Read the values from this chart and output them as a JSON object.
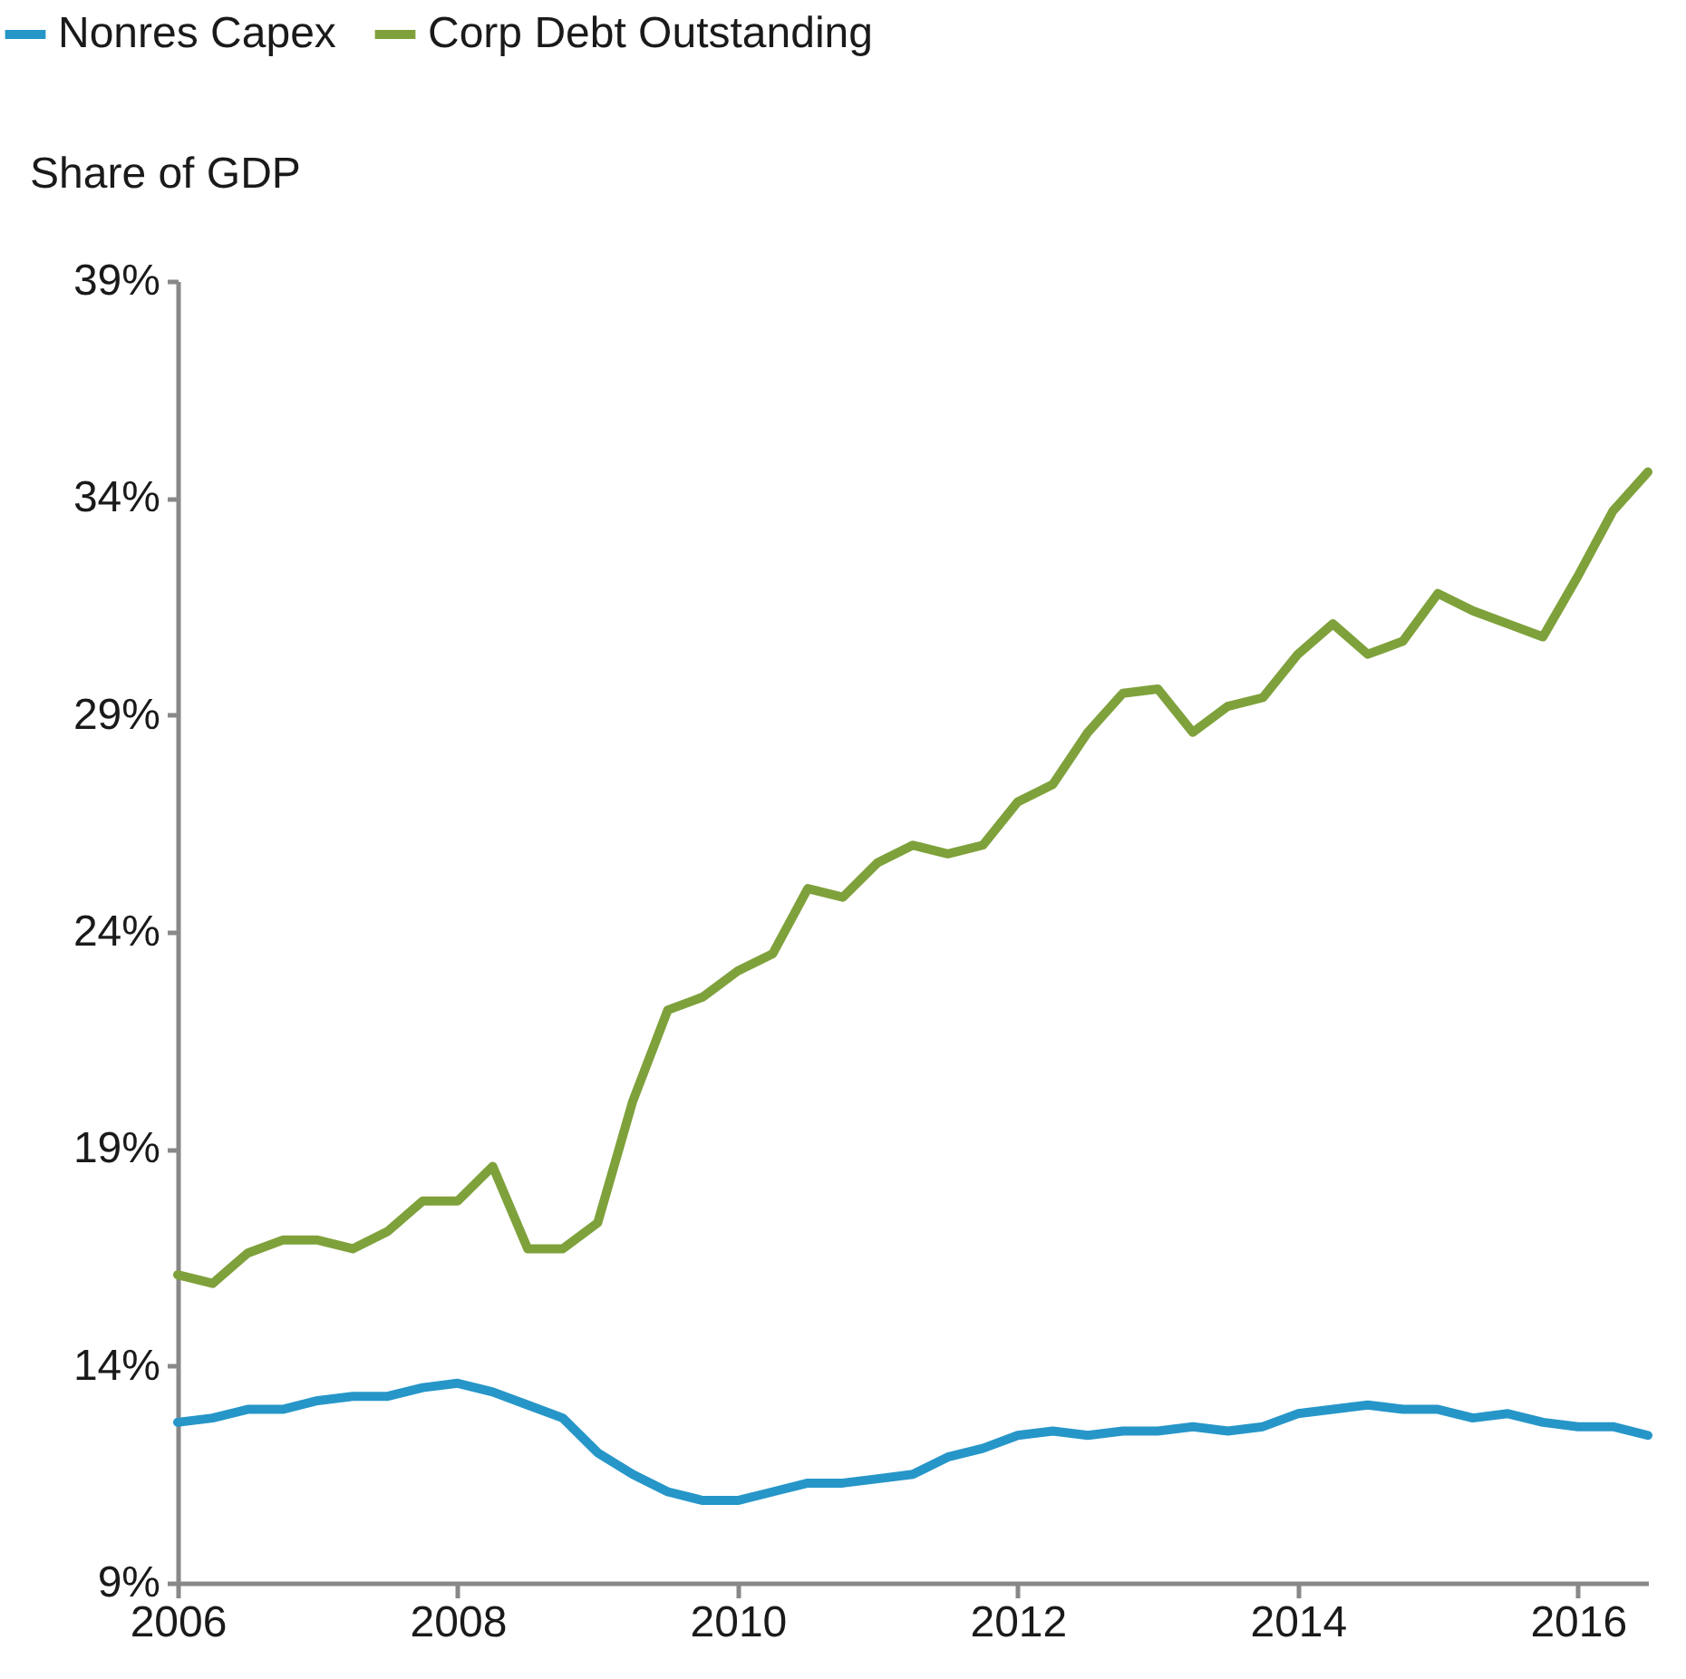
{
  "chart_data": {
    "type": "line",
    "ylabel": "Share of GDP",
    "x": [
      2006,
      2006.25,
      2006.5,
      2006.75,
      2007,
      2007.25,
      2007.5,
      2007.75,
      2008,
      2008.25,
      2008.5,
      2008.75,
      2009,
      2009.25,
      2009.5,
      2009.75,
      2010,
      2010.25,
      2010.5,
      2010.75,
      2011,
      2011.25,
      2011.5,
      2011.75,
      2012,
      2012.25,
      2012.5,
      2012.75,
      2013,
      2013.25,
      2013.5,
      2013.75,
      2014,
      2014.25,
      2014.5,
      2014.75,
      2015,
      2015.25,
      2015.5,
      2015.75,
      2016,
      2016.25,
      2016.5
    ],
    "series": [
      {
        "name": "Nonres Capex",
        "color": "#2696c8",
        "values": [
          12.7,
          12.8,
          13.0,
          13.0,
          13.2,
          13.3,
          13.3,
          13.5,
          13.6,
          13.4,
          13.1,
          12.8,
          12.0,
          11.5,
          11.1,
          10.9,
          10.9,
          11.1,
          11.3,
          11.3,
          11.4,
          11.5,
          11.9,
          12.1,
          12.4,
          12.5,
          12.4,
          12.5,
          12.5,
          12.6,
          12.5,
          12.6,
          12.9,
          13.0,
          13.1,
          13.0,
          13.0,
          12.8,
          12.9,
          12.7,
          12.6,
          12.6,
          12.4
        ]
      },
      {
        "name": "Corp Debt Outstanding",
        "color": "#7fa13b",
        "values": [
          16.1,
          15.9,
          16.6,
          16.9,
          16.9,
          16.7,
          17.1,
          17.8,
          17.8,
          18.6,
          16.7,
          16.7,
          17.3,
          20.1,
          22.2,
          22.5,
          23.1,
          23.5,
          25.0,
          24.8,
          25.6,
          26.0,
          25.8,
          26.0,
          27.0,
          27.4,
          28.6,
          29.5,
          29.6,
          28.6,
          29.2,
          29.4,
          30.4,
          31.1,
          30.4,
          30.7,
          31.8,
          31.4,
          31.1,
          30.8,
          32.2,
          33.7,
          34.6
        ]
      }
    ],
    "xlim": [
      2006,
      2016.5
    ],
    "xticks": [
      2006,
      2008,
      2010,
      2012,
      2014,
      2016
    ],
    "ylim": [
      9,
      39
    ],
    "yticks": [
      {
        "value": 9,
        "label": "9%"
      },
      {
        "value": 14,
        "label": "14%"
      },
      {
        "value": 19,
        "label": "19%"
      },
      {
        "value": 24,
        "label": "24%"
      },
      {
        "value": 29,
        "label": "29%"
      },
      {
        "value": 34,
        "label": "34%"
      },
      {
        "value": 39,
        "label": "39%"
      }
    ],
    "legend": "top left",
    "grid": false,
    "line_style": "solid",
    "marker": "none"
  }
}
